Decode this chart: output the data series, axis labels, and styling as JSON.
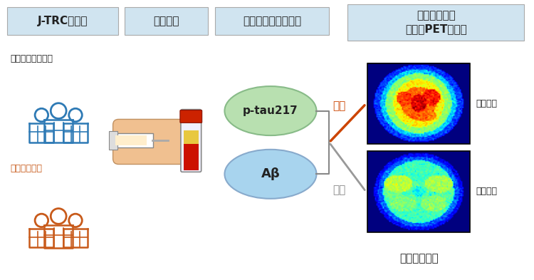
{
  "background_color": "#ffffff",
  "title_box_color": "#d0e4f0",
  "header_labels": [
    "J-TRC参加者",
    "血液採取",
    "バイオマーカー測定"
  ],
  "header_label_right": "脳アミロイド\n蓄積（PET検査）",
  "normal_label": "認知機能正常な方",
  "normal_color": "#2e7ab5",
  "mci_label": "軽度認知障害",
  "mci_color": "#c85a1a",
  "ptau_label": "p-tau217",
  "ptau_color": "#b8e0b0",
  "ab_label": "Aβ",
  "ab_color": "#a8d4ee",
  "positive_label": "陽性",
  "positive_color": "#cc4400",
  "negative_label": "陰性",
  "negative_color": "#888888",
  "positive_result": "蓄積あり",
  "negative_result": "蓄積なし",
  "bottom_label": "高精度に判別",
  "text_color": "#222222",
  "box_edge_color": "#aaaaaa",
  "header_fontsize": 11,
  "body_fontsize": 9
}
